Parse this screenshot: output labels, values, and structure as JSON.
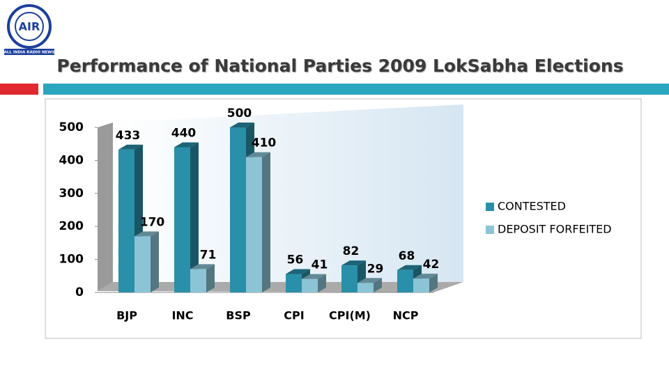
{
  "logo": {
    "text": "AIR",
    "caption": "ALL INDIA RADIO NEWS"
  },
  "chart_data": {
    "type": "bar3d",
    "title": "Performance of National Parties 2009 LokSabha Elections",
    "categories": [
      "BJP",
      "INC",
      "BSP",
      "CPI",
      "CPI(M)",
      "NCP"
    ],
    "series": [
      {
        "name": "CONTESTED",
        "color": "#2a8fa8",
        "values": [
          433,
          440,
          500,
          56,
          82,
          68
        ]
      },
      {
        "name": "DEPOSIT FORFEITED",
        "color": "#8cc4d6",
        "values": [
          170,
          71,
          410,
          41,
          29,
          42
        ]
      }
    ],
    "ylim": [
      0,
      500
    ],
    "yticks": [
      0,
      100,
      200,
      300,
      400,
      500
    ],
    "legend": "right"
  }
}
